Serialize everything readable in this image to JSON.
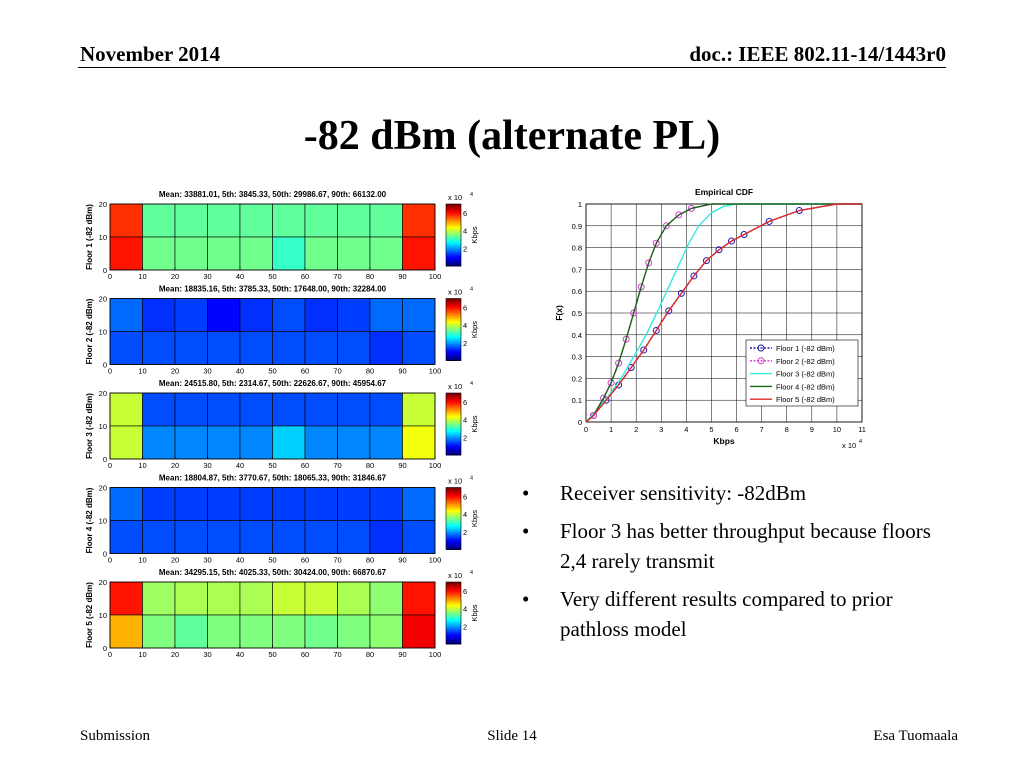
{
  "slide": {
    "date": "November 2014",
    "doc": "doc.: IEEE 802.11-14/1443r0",
    "title": "-82 dBm (alternate PL)",
    "footer_left": "Submission",
    "footer_center": "Slide 14",
    "footer_right": "Esa Tuomaala",
    "bullets": [
      "Receiver sensitivity: -82dBm",
      "Floor 3 has better throughput because floors 2,4 rarely transmit",
      "Very different results compared to prior pathloss model"
    ]
  },
  "chart_data": [
    {
      "type": "heatmap",
      "title": "Mean: 33881.01, 5th: 3845.33, 50th: 29986.67, 90th: 66132.00",
      "ylabel": "Floor 1 (-82 dBm)",
      "x_ticks": [
        "0",
        "10",
        "20",
        "30",
        "40",
        "50",
        "60",
        "70",
        "80",
        "90",
        "100"
      ],
      "y_ticks": [
        "0",
        "10",
        "20"
      ],
      "colorbar": {
        "label": "Kbps",
        "scale": "x 10",
        "exp": "4",
        "ticks": [
          "2",
          "4",
          "6"
        ],
        "range": [
          0,
          70000
        ]
      },
      "values": [
        [
          58000,
          33000,
          33000,
          33000,
          33000,
          33000,
          33000,
          33000,
          33000,
          58000
        ],
        [
          60000,
          34000,
          34000,
          34000,
          34000,
          30000,
          34000,
          34000,
          34000,
          60000
        ]
      ]
    },
    {
      "type": "heatmap",
      "title": "Mean: 18835.16, 5th: 3785.33, 50th: 17648.00, 90th: 32284.00",
      "ylabel": "Floor 2 (-82 dBm)",
      "x_ticks": [
        "0",
        "10",
        "20",
        "30",
        "40",
        "50",
        "60",
        "70",
        "80",
        "90",
        "100"
      ],
      "y_ticks": [
        "0",
        "10",
        "20"
      ],
      "colorbar": {
        "label": "Kbps",
        "scale": "x 10",
        "exp": "4",
        "ticks": [
          "2",
          "4",
          "6"
        ],
        "range": [
          0,
          70000
        ]
      },
      "values": [
        [
          16000,
          12000,
          13000,
          9000,
          12000,
          14000,
          12000,
          13000,
          16000,
          16000
        ],
        [
          14000,
          14000,
          14000,
          14000,
          14000,
          14000,
          14000,
          14000,
          12000,
          14000
        ]
      ]
    },
    {
      "type": "heatmap",
      "title": "Mean: 24515.80, 5th: 2314.67, 50th: 22626.67, 90th: 45954.67",
      "ylabel": "Floor 3 (-82 dBm)",
      "x_ticks": [
        "0",
        "10",
        "20",
        "30",
        "40",
        "50",
        "60",
        "70",
        "80",
        "90",
        "100"
      ],
      "y_ticks": [
        "0",
        "10",
        "20"
      ],
      "colorbar": {
        "label": "Kbps",
        "scale": "x 10",
        "exp": "4",
        "ticks": [
          "2",
          "4",
          "6"
        ],
        "range": [
          0,
          70000
        ]
      },
      "values": [
        [
          40000,
          14000,
          14000,
          14000,
          14000,
          14000,
          14000,
          14000,
          14000,
          40000
        ],
        [
          40000,
          18000,
          18000,
          18000,
          18000,
          23000,
          18000,
          18000,
          18000,
          43000
        ]
      ]
    },
    {
      "type": "heatmap",
      "title": "Mean: 18804.87, 5th: 3770.67, 50th: 18065.33, 90th: 31846.67",
      "ylabel": "Floor 4 (-82 dBm)",
      "x_ticks": [
        "0",
        "10",
        "20",
        "30",
        "40",
        "50",
        "60",
        "70",
        "80",
        "90",
        "100"
      ],
      "y_ticks": [
        "0",
        "10",
        "20"
      ],
      "colorbar": {
        "label": "Kbps",
        "scale": "x 10",
        "exp": "4",
        "ticks": [
          "2",
          "4",
          "6"
        ],
        "range": [
          0,
          70000
        ]
      },
      "values": [
        [
          16000,
          13000,
          13000,
          13000,
          13000,
          13000,
          13000,
          13000,
          13000,
          16000
        ],
        [
          14000,
          14000,
          14000,
          14000,
          14000,
          14000,
          14000,
          14000,
          12000,
          14000
        ]
      ]
    },
    {
      "type": "heatmap",
      "title": "Mean: 34295.15, 5th: 4025.33, 50th: 30424.00, 90th: 66870.67",
      "ylabel": "Floor 5 (-82 dBm)",
      "x_ticks": [
        "0",
        "10",
        "20",
        "30",
        "40",
        "50",
        "60",
        "70",
        "80",
        "90",
        "100"
      ],
      "y_ticks": [
        "0",
        "10",
        "20"
      ],
      "colorbar": {
        "label": "Kbps",
        "scale": "x 10",
        "exp": "4",
        "ticks": [
          "2",
          "4",
          "6"
        ],
        "range": [
          0,
          70000
        ]
      },
      "values": [
        [
          60000,
          37000,
          38000,
          38000,
          38000,
          40000,
          40000,
          38000,
          36000,
          60000
        ],
        [
          49000,
          35000,
          33000,
          35000,
          35000,
          35000,
          34000,
          35000,
          36000,
          62000
        ]
      ]
    },
    {
      "type": "line",
      "title": "Empirical CDF",
      "xlabel": "Kbps",
      "ylabel": "F(x)",
      "xlim": [
        0,
        11
      ],
      "ylim": [
        0,
        1
      ],
      "x_ticks": [
        "0",
        "1",
        "2",
        "3",
        "4",
        "5",
        "6",
        "7",
        "8",
        "9",
        "10",
        "11"
      ],
      "y_ticks": [
        "0",
        "0.1",
        "0.2",
        "0.3",
        "0.4",
        "0.5",
        "0.6",
        "0.7",
        "0.8",
        "0.9",
        "1"
      ],
      "x_scale_label": "x 10",
      "x_scale_exp": "4",
      "grid": true,
      "legend_position": "bottom-right",
      "series": [
        {
          "name": "Floor 1 (-82 dBm)",
          "color": "#1c1cb4",
          "dash": "2,1.5",
          "marker": "circle",
          "points": [
            [
              0,
              0
            ],
            [
              0.3,
              0.03
            ],
            [
              0.8,
              0.1
            ],
            [
              1.3,
              0.17
            ],
            [
              1.8,
              0.25
            ],
            [
              2.3,
              0.33
            ],
            [
              2.8,
              0.42
            ],
            [
              3.3,
              0.51
            ],
            [
              3.8,
              0.59
            ],
            [
              4.3,
              0.67
            ],
            [
              4.8,
              0.74
            ],
            [
              5.3,
              0.79
            ],
            [
              5.8,
              0.83
            ],
            [
              6.3,
              0.86
            ],
            [
              7.3,
              0.92
            ],
            [
              8.5,
              0.97
            ],
            [
              10,
              1.0
            ],
            [
              11,
              1.0
            ]
          ]
        },
        {
          "name": "Floor 2 (-82 dBm)",
          "color": "#d838d8",
          "dash": "2,1.5",
          "marker": "circle",
          "points": [
            [
              0,
              0
            ],
            [
              0.3,
              0.03
            ],
            [
              0.7,
              0.11
            ],
            [
              1.0,
              0.18
            ],
            [
              1.3,
              0.27
            ],
            [
              1.6,
              0.38
            ],
            [
              1.9,
              0.5
            ],
            [
              2.2,
              0.62
            ],
            [
              2.5,
              0.73
            ],
            [
              2.8,
              0.82
            ],
            [
              3.2,
              0.9
            ],
            [
              3.7,
              0.95
            ],
            [
              4.2,
              0.98
            ],
            [
              5,
              1.0
            ],
            [
              11,
              1.0
            ]
          ]
        },
        {
          "name": "Floor 3 (-82 dBm)",
          "color": "#38e8e0",
          "dash": "",
          "marker": "none",
          "points": [
            [
              0,
              0
            ],
            [
              0.4,
              0.05
            ],
            [
              0.9,
              0.12
            ],
            [
              1.4,
              0.2
            ],
            [
              1.9,
              0.3
            ],
            [
              2.4,
              0.4
            ],
            [
              2.9,
              0.52
            ],
            [
              3.3,
              0.62
            ],
            [
              3.7,
              0.72
            ],
            [
              4.1,
              0.82
            ],
            [
              4.5,
              0.9
            ],
            [
              5,
              0.96
            ],
            [
              5.5,
              0.99
            ],
            [
              6,
              1.0
            ],
            [
              11,
              1.0
            ]
          ]
        },
        {
          "name": "Floor 4 (-82 dBm)",
          "color": "#186818",
          "dash": "",
          "marker": "none",
          "points": [
            [
              0,
              0
            ],
            [
              0.3,
              0.03
            ],
            [
              0.7,
              0.11
            ],
            [
              1.0,
              0.18
            ],
            [
              1.3,
              0.27
            ],
            [
              1.6,
              0.38
            ],
            [
              1.9,
              0.5
            ],
            [
              2.2,
              0.62
            ],
            [
              2.5,
              0.73
            ],
            [
              2.8,
              0.82
            ],
            [
              3.2,
              0.9
            ],
            [
              3.7,
              0.95
            ],
            [
              4.2,
              0.98
            ],
            [
              5,
              1.0
            ],
            [
              11,
              1.0
            ]
          ]
        },
        {
          "name": "Floor 5 (-82 dBm)",
          "color": "#e02828",
          "dash": "",
          "marker": "none",
          "points": [
            [
              0,
              0
            ],
            [
              0.3,
              0.03
            ],
            [
              0.8,
              0.1
            ],
            [
              1.3,
              0.17
            ],
            [
              1.8,
              0.25
            ],
            [
              2.3,
              0.33
            ],
            [
              2.8,
              0.42
            ],
            [
              3.3,
              0.51
            ],
            [
              3.8,
              0.59
            ],
            [
              4.3,
              0.67
            ],
            [
              4.8,
              0.74
            ],
            [
              5.3,
              0.79
            ],
            [
              5.8,
              0.83
            ],
            [
              6.3,
              0.86
            ],
            [
              7.3,
              0.92
            ],
            [
              8.5,
              0.97
            ],
            [
              10,
              1.0
            ],
            [
              11,
              1.0
            ]
          ]
        }
      ]
    }
  ]
}
